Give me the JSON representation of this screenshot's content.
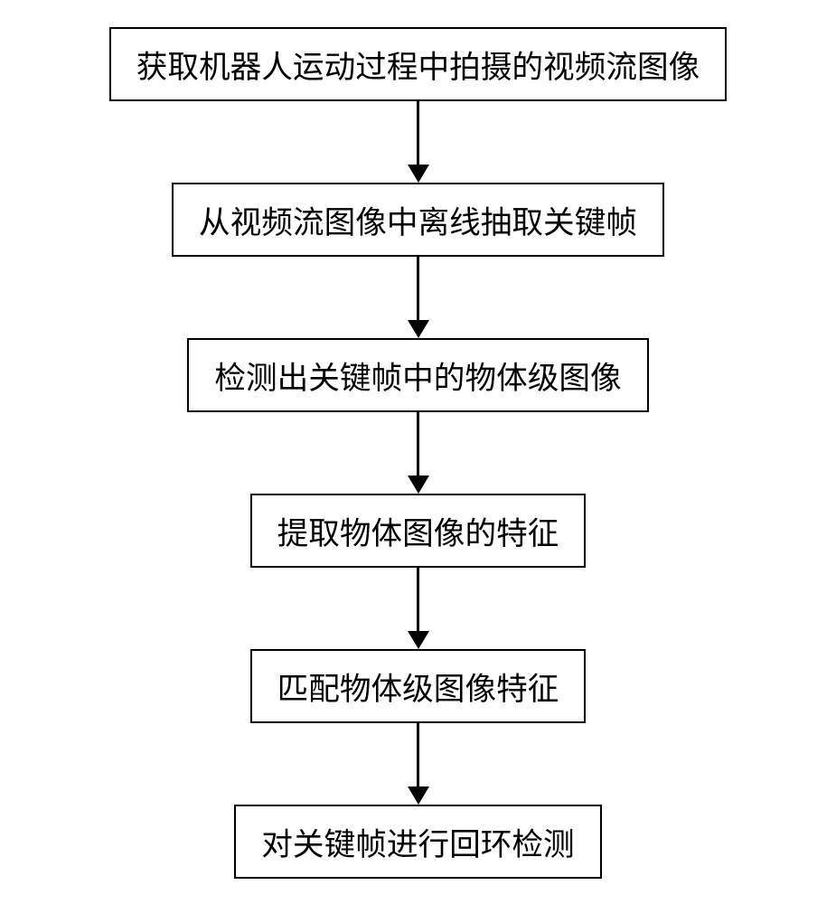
{
  "flowchart": {
    "type": "flowchart",
    "direction": "vertical",
    "background_color": "#ffffff",
    "node_border_color": "#000000",
    "node_border_width": 2,
    "node_fill_color": "#ffffff",
    "text_color": "#000000",
    "font_family": "SimSun",
    "font_size_pt": 26,
    "arrow_color": "#000000",
    "arrow_line_width": 3,
    "arrow_line_length": 70,
    "arrow_head_width": 24,
    "arrow_head_height": 20,
    "node_padding_v": 14,
    "node_padding_h": 28,
    "nodes": [
      {
        "id": "n1",
        "label": "获取机器人运动过程中拍摄的视频流图像"
      },
      {
        "id": "n2",
        "label": "从视频流图像中离线抽取关键帧"
      },
      {
        "id": "n3",
        "label": "检测出关键帧中的物体级图像"
      },
      {
        "id": "n4",
        "label": "提取物体图像的特征"
      },
      {
        "id": "n5",
        "label": "匹配物体级图像特征"
      },
      {
        "id": "n6",
        "label": "对关键帧进行回环检测"
      }
    ],
    "edges": [
      {
        "from": "n1",
        "to": "n2"
      },
      {
        "from": "n2",
        "to": "n3"
      },
      {
        "from": "n3",
        "to": "n4"
      },
      {
        "from": "n4",
        "to": "n5"
      },
      {
        "from": "n5",
        "to": "n6"
      }
    ]
  }
}
